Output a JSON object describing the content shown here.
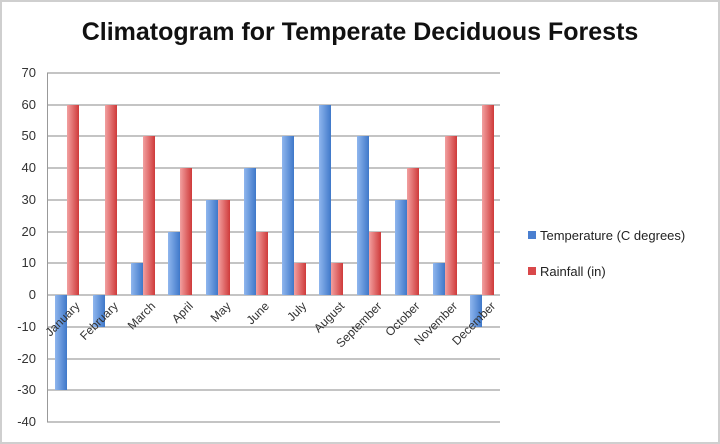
{
  "chart_data": {
    "type": "bar",
    "title": "Climatogram for Temperate Deciduous Forests",
    "xlabel": "",
    "ylabel": "",
    "ylim": [
      -40,
      70
    ],
    "yticks": [
      70,
      60,
      50,
      40,
      30,
      20,
      10,
      0,
      -10,
      -20,
      -30,
      -40
    ],
    "grid": true,
    "legend_position": "right",
    "categories": [
      "January",
      "February",
      "March",
      "April",
      "May",
      "June",
      "July",
      "August",
      "September",
      "October",
      "November",
      "December"
    ],
    "series": [
      {
        "name": "Temperature (C degrees)",
        "color": "#4a7fd0",
        "values": [
          -30,
          -10,
          10,
          20,
          30,
          40,
          50,
          60,
          50,
          30,
          10,
          -10
        ]
      },
      {
        "name": "Rainfall (in)",
        "color": "#d9484a",
        "values": [
          60,
          60,
          50,
          40,
          30,
          20,
          10,
          10,
          20,
          40,
          50,
          60
        ]
      }
    ]
  },
  "legend": {
    "items": [
      {
        "label": "Temperature (C degrees)",
        "color": "#4a7fd0"
      },
      {
        "label": "Rainfall (in)",
        "color": "#d9484a"
      }
    ]
  }
}
